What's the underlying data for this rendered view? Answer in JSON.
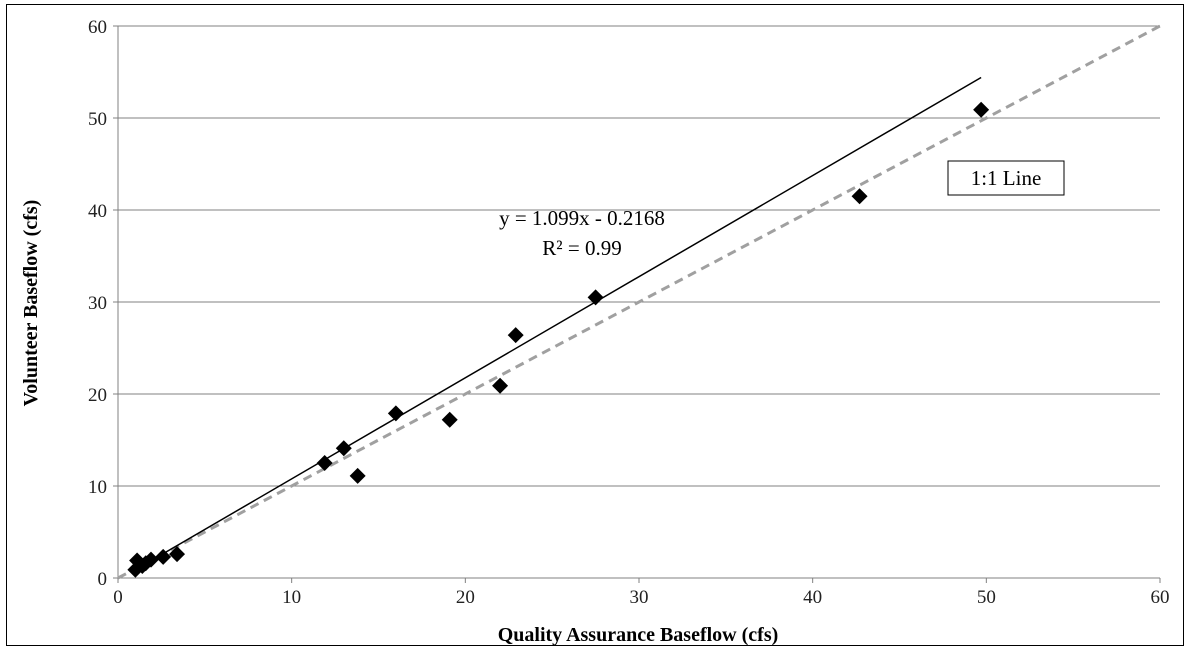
{
  "chart_data": {
    "type": "scatter",
    "xlabel": "Quality Assurance Baseflow (cfs)",
    "ylabel": "Volunteer  Baseflow (cfs)",
    "xlim": [
      0,
      60
    ],
    "ylim": [
      0,
      60
    ],
    "x_ticks": [
      "0",
      "10",
      "20",
      "30",
      "40",
      "50",
      "60"
    ],
    "y_ticks": [
      "0",
      "10",
      "20",
      "30",
      "40",
      "50",
      "60"
    ],
    "grid": "horizontal",
    "series": [
      {
        "marker": "diamond",
        "color": "#000000",
        "points": [
          [
            1.0,
            0.9
          ],
          [
            1.1,
            1.9
          ],
          [
            1.4,
            1.3
          ],
          [
            1.6,
            1.6
          ],
          [
            1.9,
            2.0
          ],
          [
            2.6,
            2.3
          ],
          [
            3.4,
            2.6
          ],
          [
            11.9,
            12.5
          ],
          [
            13.0,
            14.1
          ],
          [
            13.8,
            11.1
          ],
          [
            16.0,
            17.9
          ],
          [
            19.1,
            17.2
          ],
          [
            22.0,
            20.9
          ],
          [
            22.9,
            26.4
          ],
          [
            27.5,
            30.5
          ],
          [
            42.7,
            41.5
          ],
          [
            49.7,
            50.9
          ]
        ]
      }
    ],
    "trendline": {
      "slope": 1.099,
      "intercept": -0.2168,
      "x_range": [
        0.9,
        49.7
      ],
      "color": "#000000"
    },
    "reference_line": {
      "label": "1:1 Line",
      "slope": 1,
      "intercept": 0,
      "color": "#a0a0a0",
      "style": "dashed"
    },
    "annotations": {
      "equation": "y = 1.099x - 0.2168",
      "r_squared": "R² = 0.99",
      "reference_label": "1:1 Line"
    }
  }
}
